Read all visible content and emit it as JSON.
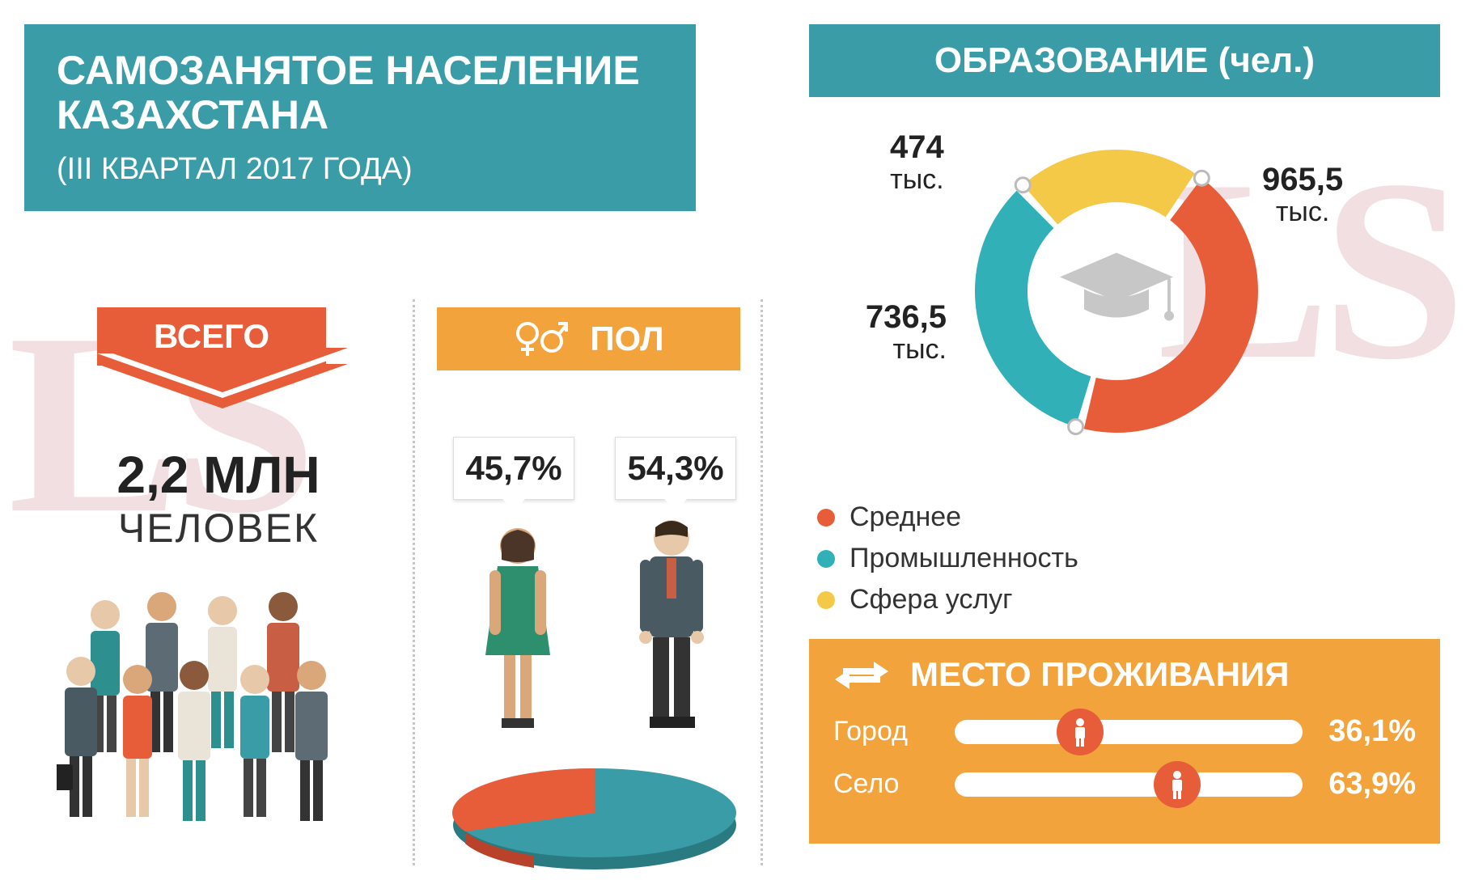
{
  "header": {
    "title": "САМОЗАНЯТОЕ НАСЕЛЕНИЕ КАЗАХСТАНА",
    "subtitle": "(III КВАРТАЛ 2017 ГОДА)",
    "bg": "#3a9ca6",
    "text_color": "#ffffff"
  },
  "total": {
    "label": "ВСЕГО",
    "value": "2,2 МЛН",
    "unit": "ЧЕЛОВЕК",
    "banner_color": "#e75d3a"
  },
  "gender": {
    "header": "ПОЛ",
    "header_bg": "#f2a33c",
    "female_pct": "45,7%",
    "male_pct": "54,3%",
    "pie": {
      "female_color": "#e75d3a",
      "male_color": "#3a9ca6",
      "female_share": 45.7,
      "male_share": 54.3
    }
  },
  "education": {
    "header": "ОБРАЗОВАНИЕ (чел.)",
    "header_bg": "#3a9ca6",
    "donut": {
      "inner_radius": 110,
      "outer_radius": 175,
      "segments": [
        {
          "label": "Среднее",
          "value_text": "965,5",
          "unit": "тыс.",
          "value": 965.5,
          "color": "#e75d3a"
        },
        {
          "label": "Промышленность",
          "value_text": "736,5",
          "unit": "тыс.",
          "value": 736.5,
          "color": "#31b0b8"
        },
        {
          "label": "Сфера услуг",
          "value_text": "474",
          "unit": "тыс.",
          "value": 474,
          "color": "#f4c948"
        }
      ]
    }
  },
  "residence": {
    "header": "МЕСТО ПРОЖИВАНИЯ",
    "panel_bg": "#f2a33c",
    "knob_color": "#e75d3a",
    "rows": [
      {
        "label": "Город",
        "pct_text": "36,1%",
        "pct": 36.1
      },
      {
        "label": "Село",
        "pct_text": "63,9%",
        "pct": 63.9
      }
    ]
  },
  "watermark": "LS",
  "colors": {
    "divider": "#c7c7c7",
    "text": "#222222"
  }
}
